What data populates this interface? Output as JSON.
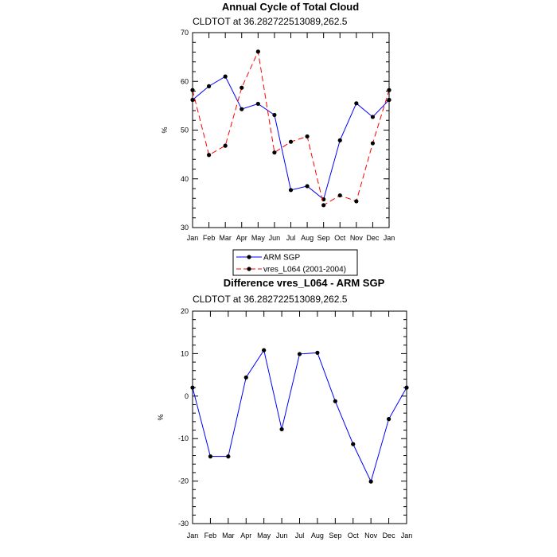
{
  "chart_data": [
    {
      "type": "line",
      "title": "Annual Cycle of Total Cloud",
      "subtitle": "CLDTOT at 36.282722513089,262.5",
      "xlabel": "",
      "ylabel": "%",
      "categories": [
        "Jan",
        "Feb",
        "Mar",
        "Apr",
        "May",
        "Jun",
        "Jul",
        "Aug",
        "Sep",
        "Oct",
        "Nov",
        "Dec",
        "Jan"
      ],
      "ylim": [
        30,
        70
      ],
      "yticks": [
        30,
        40,
        50,
        60,
        70
      ],
      "series": [
        {
          "name": "ARM SGP",
          "color": "#0000ff",
          "dash": "solid",
          "values": [
            56.2,
            59.0,
            61.0,
            54.3,
            55.4,
            53.1,
            37.7,
            38.5,
            35.8,
            47.9,
            55.5,
            52.7,
            56.2
          ]
        },
        {
          "name": "vres_L064 (2001-2004)",
          "color": "#ff0000",
          "dash": "dashed",
          "values": [
            58.2,
            44.9,
            46.8,
            58.7,
            66.1,
            45.4,
            47.6,
            48.7,
            34.6,
            36.6,
            35.4,
            47.3,
            58.2
          ]
        }
      ],
      "legend": "below",
      "grid": false
    },
    {
      "type": "line",
      "title": "Difference vres_L064 - ARM SGP",
      "subtitle": "CLDTOT at 36.282722513089,262.5",
      "xlabel": "",
      "ylabel": "%",
      "categories": [
        "Jan",
        "Feb",
        "Mar",
        "Apr",
        "May",
        "Jun",
        "Jul",
        "Aug",
        "Sep",
        "Oct",
        "Nov",
        "Dec",
        "Jan"
      ],
      "ylim": [
        -30,
        20
      ],
      "yticks": [
        -30,
        -20,
        -10,
        0,
        10,
        20
      ],
      "series": [
        {
          "color": "#0000ff",
          "dash": "solid",
          "values": [
            2.0,
            -14.2,
            -14.2,
            4.4,
            10.8,
            -7.8,
            9.9,
            10.2,
            -1.2,
            -11.3,
            -20.1,
            -5.4,
            2.0
          ]
        }
      ],
      "grid": false
    }
  ]
}
